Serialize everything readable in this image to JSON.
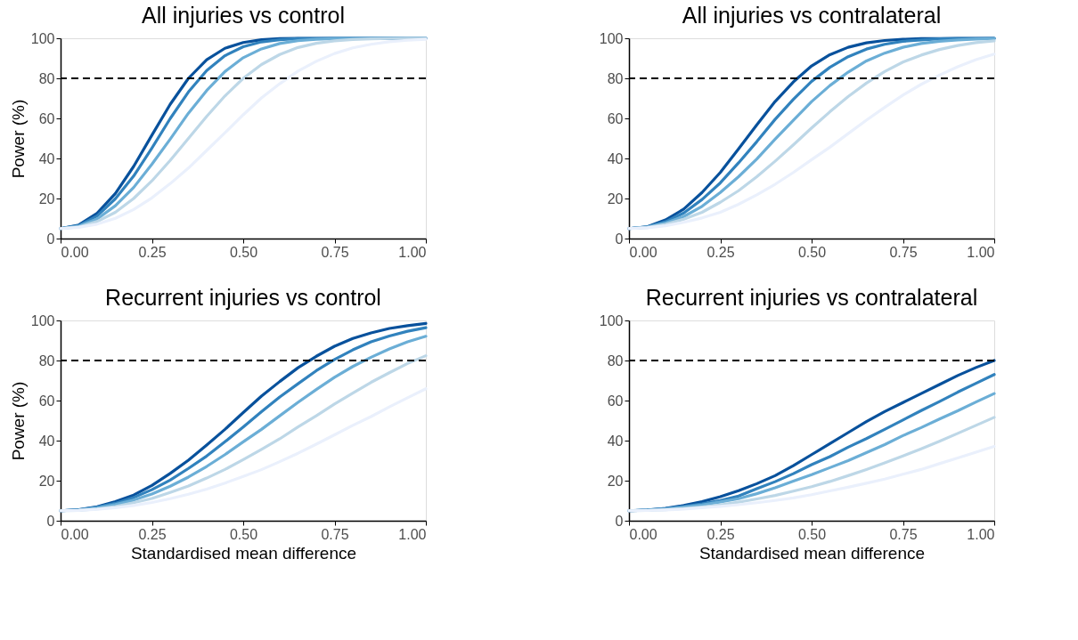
{
  "chart_data": [
    {
      "type": "line",
      "title": "All injuries vs control",
      "ylabel": "Power (%)",
      "x": [
        0,
        0.05,
        0.1,
        0.15,
        0.2,
        0.25,
        0.3,
        0.35,
        0.4,
        0.45,
        0.5,
        0.55,
        0.6,
        0.65,
        0.7,
        0.75,
        0.8,
        0.85,
        0.9,
        0.95,
        1.0
      ],
      "series": [
        {
          "color": "#08519c",
          "values": [
            5,
            6.8,
            12.6,
            22.5,
            36,
            51.6,
            67,
            80,
            89.3,
            95,
            97.9,
            99.3,
            99.8,
            100,
            100,
            100,
            100,
            100,
            100,
            100,
            100
          ]
        },
        {
          "color": "#3182bd",
          "values": [
            5,
            6.5,
            11.3,
            19.9,
            31.2,
            45.2,
            59.9,
            73.2,
            83.9,
            91.3,
            95.8,
            98.2,
            99.3,
            99.8,
            99.9,
            100,
            100,
            100,
            100,
            100,
            100
          ]
        },
        {
          "color": "#6baed6",
          "values": [
            5,
            6.2,
            9.8,
            16.4,
            25.5,
            37.1,
            49.6,
            62.6,
            73.9,
            83.4,
            90.3,
            94.7,
            97.4,
            98.8,
            99.5,
            99.8,
            99.9,
            100,
            100,
            100,
            100
          ]
        },
        {
          "color": "#bdd7e7",
          "values": [
            5,
            5.8,
            8.5,
            13.1,
            20,
            28.8,
            39,
            50,
            61,
            71.2,
            80,
            86.9,
            91.9,
            95.4,
            97.5,
            98.7,
            99.4,
            99.7,
            99.9,
            100,
            100
          ]
        },
        {
          "color": "#eaf0fc",
          "values": [
            5,
            5.6,
            7.2,
            10.1,
            14.5,
            20.3,
            27.4,
            35.2,
            44,
            52.8,
            61.8,
            70.2,
            77.3,
            83.6,
            88.5,
            92.4,
            95.2,
            97,
            98.3,
            99,
            99.5
          ]
        }
      ],
      "xlim": [
        0,
        1
      ],
      "ylim": [
        0,
        100
      ],
      "xticks": [
        {
          "value": 0,
          "label": "0.00"
        },
        {
          "value": 0.25,
          "label": "0.25"
        },
        {
          "value": 0.5,
          "label": "0.50"
        },
        {
          "value": 0.75,
          "label": "0.75"
        },
        {
          "value": 1,
          "label": "1.00"
        }
      ],
      "yticks": [
        0,
        20,
        40,
        60,
        80,
        100
      ],
      "ref_lines": [
        {
          "axis": "y",
          "value": 80,
          "color": "#000000",
          "line_style": "dashed"
        }
      ],
      "grid": false,
      "legend": false
    },
    {
      "type": "line",
      "title": "All injuries vs contralateral",
      "x": [
        0,
        0.05,
        0.1,
        0.15,
        0.2,
        0.25,
        0.3,
        0.35,
        0.4,
        0.45,
        0.5,
        0.55,
        0.6,
        0.65,
        0.7,
        0.75,
        0.8,
        0.85,
        0.9,
        0.95,
        1.0
      ],
      "series": [
        {
          "color": "#08519c",
          "values": [
            5,
            5.9,
            9.3,
            14.7,
            23,
            33,
            44.8,
            56.8,
            68.4,
            78.2,
            86.2,
            91.8,
            95.5,
            97.7,
            98.9,
            99.5,
            99.8,
            99.9,
            100,
            100,
            100
          ]
        },
        {
          "color": "#3182bd",
          "values": [
            5,
            5.8,
            8.4,
            12.8,
            19.5,
            27.8,
            37.8,
            48.4,
            59.5,
            69.5,
            78.5,
            85.5,
            90.8,
            94.6,
            97,
            98.5,
            99.2,
            99.7,
            99.8,
            99.9,
            100
          ]
        },
        {
          "color": "#6baed6",
          "values": [
            5,
            5.7,
            7.8,
            11,
            16.1,
            23,
            30.9,
            39.7,
            49.6,
            59.1,
            68.4,
            76.4,
            83.1,
            88.7,
            92.6,
            95.5,
            97.4,
            98.5,
            99.2,
            99.6,
            99.8
          ]
        },
        {
          "color": "#bdd7e7",
          "values": [
            5,
            5.5,
            7.1,
            9.7,
            13.1,
            18.1,
            23.9,
            30.9,
            38.6,
            46.8,
            55.2,
            63.3,
            70.9,
            77.6,
            83.4,
            88.1,
            91.6,
            94.4,
            96.4,
            97.8,
            98.7
          ]
        },
        {
          "color": "#eaf0fc",
          "values": [
            5,
            5.4,
            6.4,
            8.1,
            10.3,
            13.1,
            17.1,
            21.8,
            27.1,
            33,
            39.4,
            45.6,
            52.4,
            59.1,
            65.5,
            71.6,
            77,
            81.6,
            85.8,
            89.3,
            92.1
          ]
        }
      ],
      "xlim": [
        0,
        1
      ],
      "ylim": [
        0,
        100
      ],
      "xticks": [
        {
          "value": 0,
          "label": "0.00"
        },
        {
          "value": 0.25,
          "label": "0.25"
        },
        {
          "value": 0.5,
          "label": "0.50"
        },
        {
          "value": 0.75,
          "label": "0.75"
        },
        {
          "value": 1,
          "label": "1.00"
        }
      ],
      "yticks": [
        0,
        20,
        40,
        60,
        80,
        100
      ],
      "ref_lines": [
        {
          "axis": "y",
          "value": 80,
          "color": "#000000",
          "line_style": "dashed"
        }
      ],
      "grid": false,
      "legend": false
    },
    {
      "type": "line",
      "title": "Recurrent injuries vs control",
      "xlabel": "Standardised mean difference",
      "ylabel": "Power (%)",
      "x": [
        0,
        0.05,
        0.1,
        0.15,
        0.2,
        0.25,
        0.3,
        0.35,
        0.4,
        0.45,
        0.5,
        0.55,
        0.6,
        0.65,
        0.7,
        0.75,
        0.8,
        0.85,
        0.9,
        0.95,
        1.0
      ],
      "series": [
        {
          "color": "#08519c",
          "values": [
            5,
            5.5,
            7,
            9.5,
            12.8,
            17.6,
            23.6,
            30.2,
            37.8,
            45.6,
            54,
            62.2,
            69.5,
            76.4,
            82.1,
            87.1,
            91,
            93.8,
            96,
            97.4,
            98.5
          ]
        },
        {
          "color": "#3182bd",
          "values": [
            5,
            5.4,
            6.7,
            8.7,
            11.6,
            15.5,
            20.3,
            26.1,
            32.3,
            39.4,
            46.8,
            54.4,
            61.8,
            68.4,
            74.9,
            80.5,
            85.3,
            89.3,
            92.2,
            94.6,
            96.4
          ]
        },
        {
          "color": "#6baed6",
          "values": [
            5,
            5.4,
            6.4,
            8.1,
            10.3,
            13.3,
            17.2,
            21.8,
            27.1,
            33,
            39.4,
            45.6,
            52.4,
            59.1,
            65.5,
            71.6,
            77,
            81.6,
            85.8,
            89.3,
            92.1
          ]
        },
        {
          "color": "#bdd7e7",
          "values": [
            5,
            5.2,
            5.9,
            7.1,
            9,
            11.1,
            14.1,
            17.3,
            21.3,
            25.6,
            30.5,
            35.6,
            40.9,
            46.8,
            52.4,
            58.3,
            63.7,
            69.1,
            73.9,
            78.5,
            82.4
          ]
        },
        {
          "color": "#eaf0fc",
          "values": [
            5,
            5.2,
            5.7,
            6.5,
            7.6,
            9.1,
            11,
            13.2,
            15.8,
            18.8,
            22.1,
            25.5,
            29.5,
            33.7,
            38.2,
            42.9,
            47.6,
            52,
            56.8,
            61.4,
            65.9
          ]
        }
      ],
      "xlim": [
        0,
        1
      ],
      "ylim": [
        0,
        100
      ],
      "xticks": [
        {
          "value": 0,
          "label": "0.00"
        },
        {
          "value": 0.25,
          "label": "0.25"
        },
        {
          "value": 0.5,
          "label": "0.50"
        },
        {
          "value": 0.75,
          "label": "0.75"
        },
        {
          "value": 1,
          "label": "1.00"
        }
      ],
      "yticks": [
        0,
        20,
        40,
        60,
        80,
        100
      ],
      "ref_lines": [
        {
          "axis": "y",
          "value": 80,
          "color": "#000000",
          "line_style": "dashed"
        }
      ],
      "grid": false,
      "legend": false
    },
    {
      "type": "line",
      "title": "Recurrent injuries vs contralateral",
      "xlabel": "Standardised mean difference",
      "x": [
        0,
        0.05,
        0.1,
        0.15,
        0.2,
        0.25,
        0.3,
        0.35,
        0.4,
        0.45,
        0.5,
        0.55,
        0.6,
        0.65,
        0.7,
        0.75,
        0.8,
        0.85,
        0.9,
        0.95,
        1.0
      ],
      "series": [
        {
          "color": "#08519c",
          "values": [
            5,
            5.3,
            6.2,
            7.6,
            9.5,
            12,
            15,
            18.5,
            22.5,
            27.5,
            33,
            38.5,
            44,
            49.5,
            54.5,
            59,
            63.5,
            68,
            72.5,
            76.5,
            80
          ]
        },
        {
          "color": "#3182bd",
          "values": [
            5,
            5.4,
            6.1,
            7.1,
            8.4,
            10.1,
            12.3,
            16,
            19.5,
            23.5,
            28,
            32,
            36.7,
            41,
            45.6,
            50.3,
            55,
            59.5,
            64.2,
            68.6,
            73
          ]
        },
        {
          "color": "#6baed6",
          "values": [
            5,
            5.3,
            5.9,
            6.8,
            7.9,
            9.4,
            11,
            13.5,
            16.4,
            19.8,
            23,
            26.5,
            30,
            34,
            38,
            42.5,
            46.5,
            50.8,
            54.9,
            59.3,
            63.5
          ]
        },
        {
          "color": "#bdd7e7",
          "values": [
            5,
            5.1,
            5.5,
            6.1,
            6.9,
            7.9,
            9.3,
            10.9,
            12.6,
            14.8,
            17,
            19.6,
            22.5,
            25.6,
            28.9,
            32.3,
            35.9,
            39.7,
            43.6,
            47.6,
            51.6
          ]
        },
        {
          "color": "#eaf0fc",
          "values": [
            5,
            5.1,
            5.4,
            5.8,
            6.5,
            7.2,
            8,
            9,
            10.1,
            11.4,
            13,
            14.9,
            16.7,
            18.7,
            20.8,
            23.2,
            25.6,
            28.5,
            31.3,
            34.2,
            37.1
          ]
        }
      ],
      "xlim": [
        0,
        1
      ],
      "ylim": [
        0,
        100
      ],
      "xticks": [
        {
          "value": 0,
          "label": "0.00"
        },
        {
          "value": 0.25,
          "label": "0.25"
        },
        {
          "value": 0.5,
          "label": "0.50"
        },
        {
          "value": 0.75,
          "label": "0.75"
        },
        {
          "value": 1,
          "label": "1.00"
        }
      ],
      "yticks": [
        0,
        20,
        40,
        60,
        80,
        100
      ],
      "ref_lines": [
        {
          "axis": "y",
          "value": 80,
          "color": "#000000",
          "line_style": "dashed"
        }
      ],
      "grid": false,
      "legend": false
    }
  ]
}
